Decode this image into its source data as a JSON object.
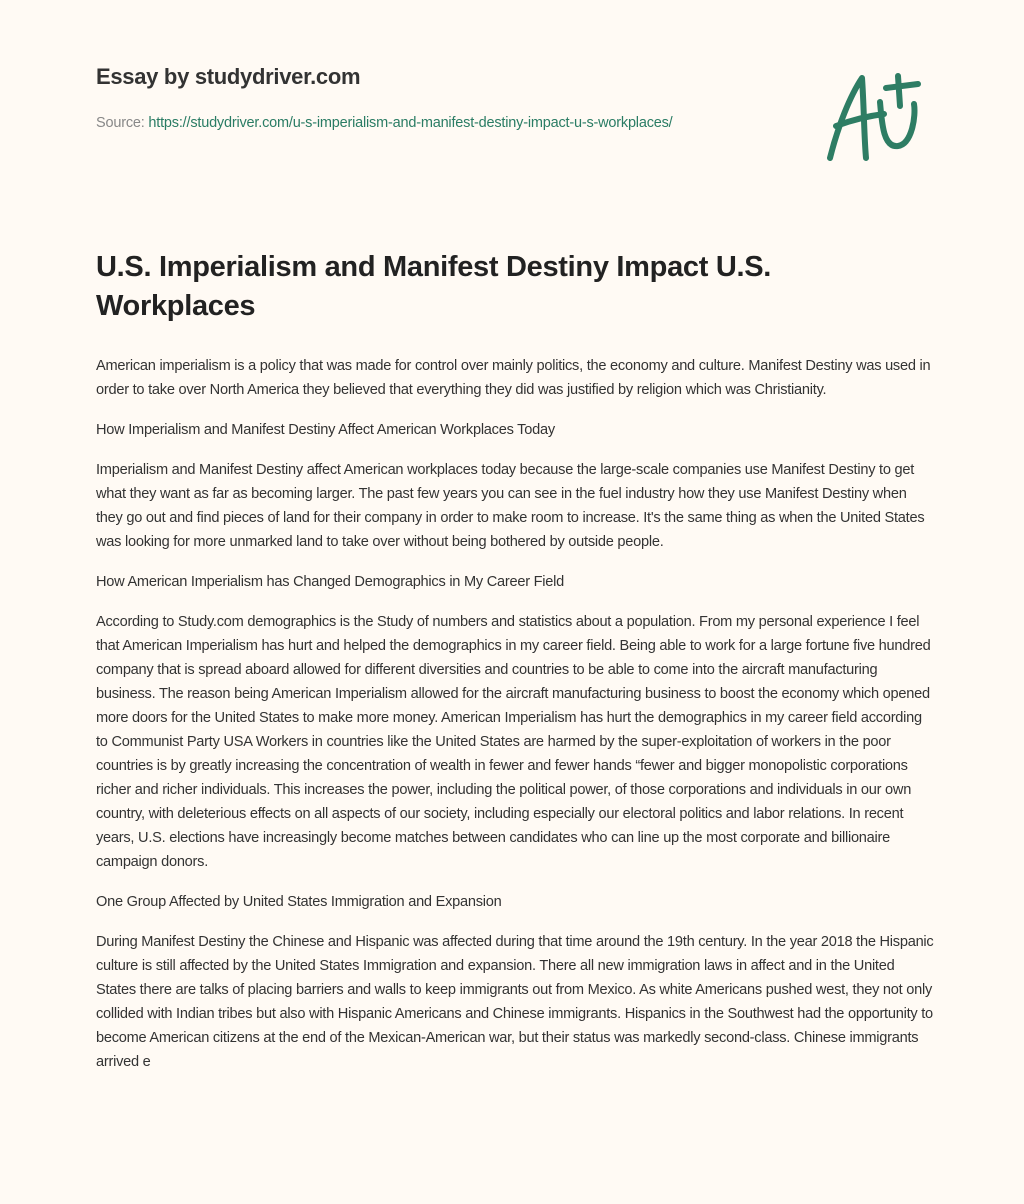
{
  "header": {
    "brand": "Essay by studydriver.com",
    "source_label": "Source: ",
    "source_url": "https://studydriver.com/u-s-imperialism-and-manifest-destiny-impact-u-s-workplaces/",
    "logo_text": "A+",
    "accent_color": "#2e7d64"
  },
  "title": "U.S. Imperialism and Manifest Destiny Impact U.S. Workplaces",
  "paragraphs": [
    "American imperialism is a policy that was made for control over mainly politics, the economy and culture. Manifest Destiny was used in order to take over North America they believed that everything they did was justified by religion which was Christianity.",
    "How Imperialism and Manifest Destiny Affect American Workplaces Today",
    "Imperialism and Manifest Destiny affect American workplaces today because the large-scale companies use Manifest Destiny to get what they want as far as becoming larger. The past few years you can see in the fuel industry how they use Manifest Destiny when they go out and find pieces of land for their company in order to make room to increase. It's the same thing as when the United States was looking for more unmarked land to take over without being bothered by outside people.",
    "How American Imperialism has Changed Demographics in My Career Field",
    "According to Study.com demographics is the Study of numbers and statistics about a population. From my personal experience I feel that American Imperialism has hurt and helped the demographics in my career field. Being able to work for a large fortune five hundred company that is spread aboard allowed for different diversities and countries to be able to come into the aircraft manufacturing business. The reason being American Imperialism allowed for the aircraft manufacturing business to boost the economy which opened more doors for the United States to make more money. American Imperialism has hurt the demographics in my career field according to Communist Party USA Workers in countries like the United States are harmed by the super-exploitation of workers in the poor countries is by greatly increasing the concentration of wealth in fewer and fewer hands “fewer and bigger monopolistic corporations richer and richer individuals. This increases the power, including the political power, of those corporations and individuals in our own country, with deleterious effects on all aspects of our society, including especially our electoral politics and labor relations. In recent years, U.S. elections have increasingly become matches between candidates who can line up the most corporate and billionaire campaign donors.",
    "One Group Affected by United States Immigration and Expansion",
    "During Manifest Destiny the Chinese and Hispanic was affected during that time around the 19th century. In the year 2018 the Hispanic culture is still affected by the United States Immigration and expansion. There all new immigration laws in affect and in the United States there are talks of placing barriers and walls to keep immigrants out from Mexico. As white Americans pushed west, they not only collided with Indian tribes but also with Hispanic Americans and Chinese immigrants. Hispanics in the Southwest had the opportunity to become American citizens at the end of the Mexican-American war, but their status was markedly second-class. Chinese immigrants arrived e"
  ]
}
